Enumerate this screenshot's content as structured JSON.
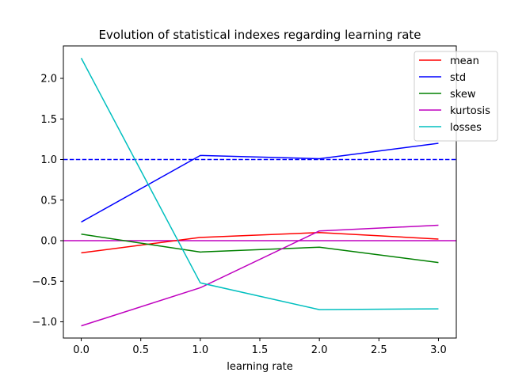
{
  "chart_data": {
    "type": "line",
    "title": "Evolution of statistical indexes regarding learning rate",
    "xlabel": "learning rate",
    "ylabel": "",
    "x": [
      0,
      1,
      2,
      3
    ],
    "xlim": [
      -0.15,
      3.15
    ],
    "ylim": [
      -1.2,
      2.4
    ],
    "xticks": [
      "0.0",
      "0.5",
      "1.0",
      "1.5",
      "2.0",
      "2.5",
      "3.0"
    ],
    "yticks": [
      "−1.0",
      "−0.5",
      "0.0",
      "0.5",
      "1.0",
      "1.5",
      "2.0"
    ],
    "grid": false,
    "legend_position": "top-right",
    "series": [
      {
        "name": "mean",
        "color": "#ff0000",
        "values": [
          -0.15,
          0.04,
          0.1,
          0.02
        ]
      },
      {
        "name": "std",
        "color": "#0000ff",
        "values": [
          0.23,
          1.05,
          1.01,
          1.2
        ]
      },
      {
        "name": "skew",
        "color": "#008000",
        "values": [
          0.08,
          -0.14,
          -0.08,
          -0.27
        ]
      },
      {
        "name": "kurtosis",
        "color": "#bf00bf",
        "values": [
          -1.05,
          -0.58,
          0.12,
          0.19
        ]
      },
      {
        "name": "losses",
        "color": "#00bfbf",
        "values": [
          2.25,
          -0.52,
          -0.85,
          -0.84
        ]
      }
    ],
    "reference_lines": [
      {
        "y": 1.0,
        "color": "#0000ff",
        "style": "dashed"
      },
      {
        "y": 0.0,
        "color": "#bf00bf",
        "style": "solid"
      }
    ]
  }
}
